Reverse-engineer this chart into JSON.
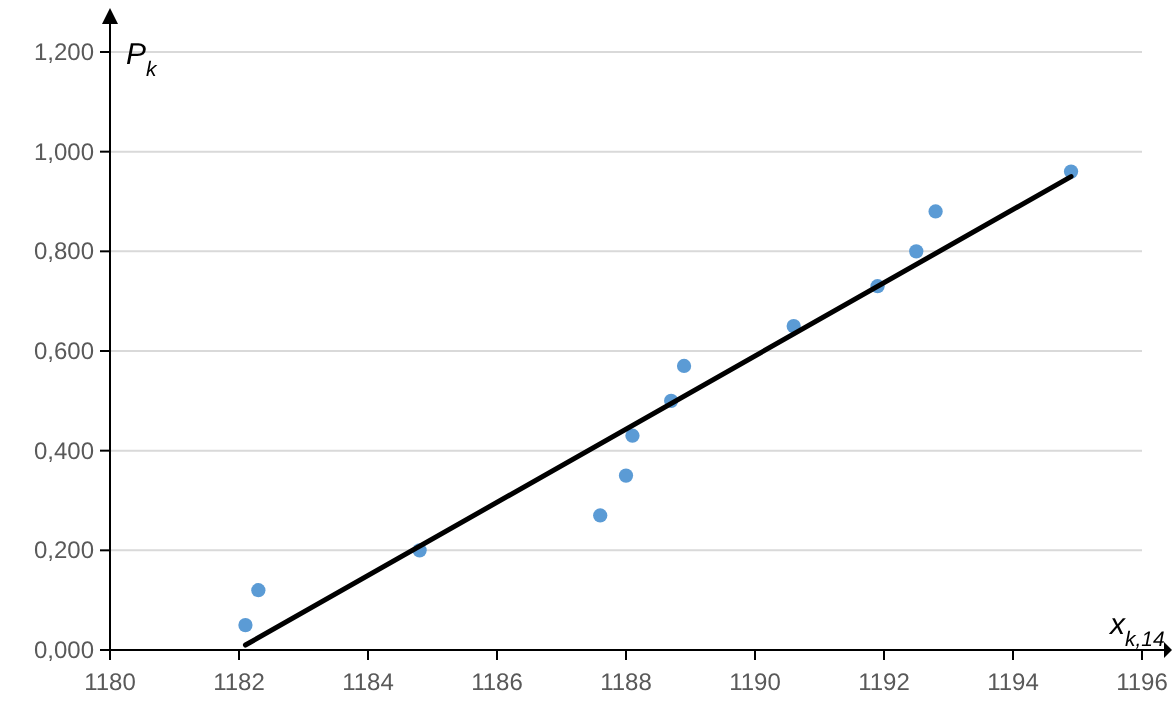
{
  "chart_data": {
    "type": "scatter",
    "xlabel": "x$_{k,14}$",
    "ylabel": "P$_{k}$",
    "xlim": [
      1180,
      1196
    ],
    "xticks": [
      1180,
      1182,
      1184,
      1186,
      1188,
      1190,
      1192,
      1194,
      1196
    ],
    "ylim": [
      0,
      1.2
    ],
    "yticks": [
      {
        "value": 0,
        "label": "0,000"
      },
      {
        "value": 0.2,
        "label": "0,200"
      },
      {
        "value": 0.4,
        "label": "0,400"
      },
      {
        "value": 0.6,
        "label": "0,600"
      },
      {
        "value": 0.8,
        "label": "0,800"
      },
      {
        "value": 1,
        "label": "1,000"
      },
      {
        "value": 1.2,
        "label": "1,200"
      }
    ],
    "grid": "y",
    "series": [
      {
        "color": "#5b9bd5",
        "marker": "circle",
        "x": [
          1182.1,
          1182.3,
          1184.8,
          1187.6,
          1188.0,
          1188.1,
          1188.7,
          1188.9,
          1190.6,
          1191.9,
          1192.5,
          1192.8,
          1194.9
        ],
        "values": [
          0.05,
          0.12,
          0.2,
          0.27,
          0.35,
          0.43,
          0.5,
          0.57,
          0.65,
          0.73,
          0.8,
          0.88,
          0.96
        ]
      },
      {
        "type": "line",
        "color": "#000000",
        "x": [
          1182.1,
          1194.9
        ],
        "values": [
          0.01,
          0.95
        ],
        "line_style": "solid"
      }
    ]
  }
}
